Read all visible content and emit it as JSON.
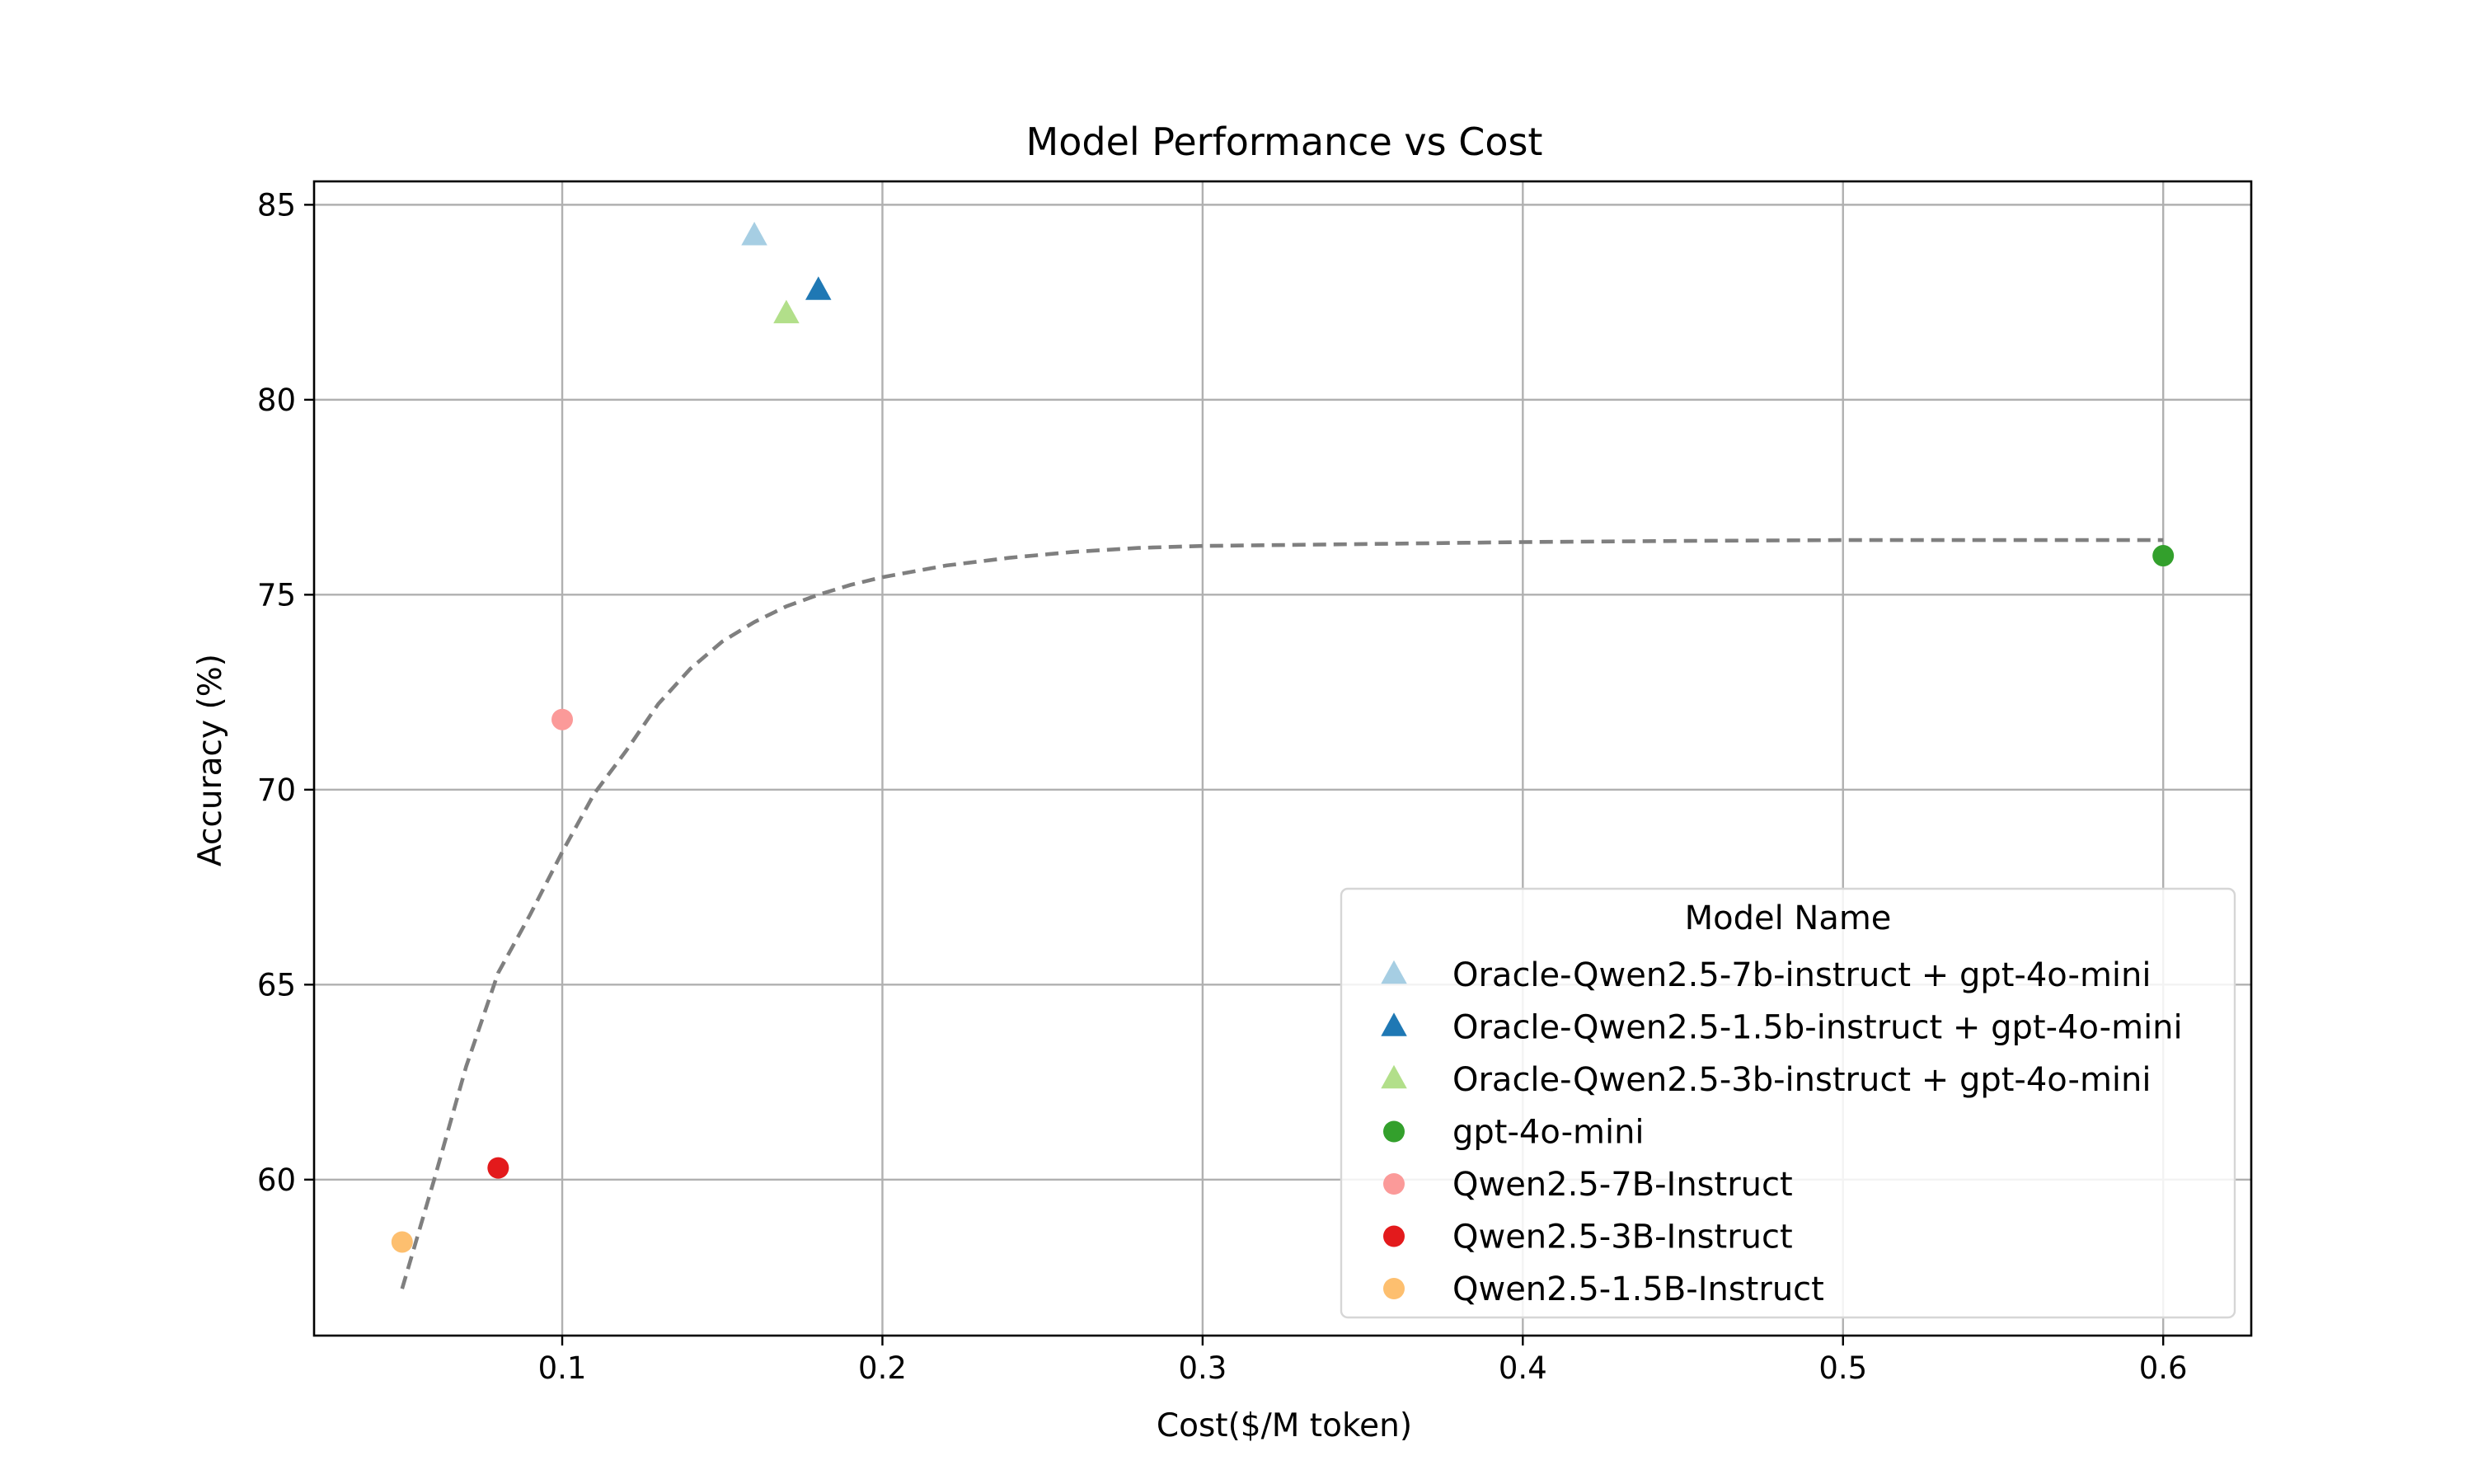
{
  "chart_data": {
    "type": "scatter",
    "title": "Model Performance vs Cost",
    "xlabel": "Cost($/M token)",
    "ylabel": "Accuracy (%)",
    "xlim": [
      0.0225,
      0.6275
    ],
    "ylim": [
      56.0,
      85.6
    ],
    "xticks": [
      0.1,
      0.2,
      0.3,
      0.4,
      0.5,
      0.6
    ],
    "xtick_labels": [
      "0.1",
      "0.2",
      "0.3",
      "0.4",
      "0.5",
      "0.6"
    ],
    "yticks": [
      60,
      65,
      70,
      75,
      80,
      85
    ],
    "ytick_labels": [
      "60",
      "65",
      "70",
      "75",
      "80",
      "85"
    ],
    "grid": true,
    "legend": {
      "title": "Model Name",
      "position": "lower-right"
    },
    "series": [
      {
        "name": "Oracle-Qwen2.5-7b-instruct + gpt-4o-mini",
        "marker": "triangle",
        "color": "#a6cee3",
        "x": [
          0.16
        ],
        "y": [
          84.2
        ]
      },
      {
        "name": "Oracle-Qwen2.5-1.5b-instruct + gpt-4o-mini",
        "marker": "triangle",
        "color": "#1f78b4",
        "x": [
          0.18
        ],
        "y": [
          82.8
        ]
      },
      {
        "name": "Oracle-Qwen2.5-3b-instruct + gpt-4o-mini",
        "marker": "triangle",
        "color": "#b2df8a",
        "x": [
          0.17
        ],
        "y": [
          82.2
        ]
      },
      {
        "name": "gpt-4o-mini",
        "marker": "circle",
        "color": "#33a02c",
        "x": [
          0.6
        ],
        "y": [
          76.0
        ]
      },
      {
        "name": "Qwen2.5-7B-Instruct",
        "marker": "circle",
        "color": "#fb9a99",
        "x": [
          0.1
        ],
        "y": [
          71.8
        ]
      },
      {
        "name": "Qwen2.5-3B-Instruct",
        "marker": "circle",
        "color": "#e31a1c",
        "x": [
          0.08
        ],
        "y": [
          60.3
        ]
      },
      {
        "name": "Qwen2.5-1.5B-Instruct",
        "marker": "circle",
        "color": "#fdbf6f",
        "x": [
          0.05
        ],
        "y": [
          58.4
        ]
      }
    ],
    "trend_line": {
      "style": "dashed",
      "color": "#7f7f7f",
      "x": [
        0.05,
        0.06,
        0.07,
        0.08,
        0.09,
        0.1,
        0.11,
        0.12,
        0.13,
        0.14,
        0.15,
        0.16,
        0.17,
        0.18,
        0.19,
        0.2,
        0.22,
        0.24,
        0.26,
        0.28,
        0.3,
        0.35,
        0.4,
        0.45,
        0.5,
        0.55,
        0.6
      ],
      "y": [
        57.2,
        60.0,
        62.9,
        65.3,
        66.8,
        68.4,
        69.9,
        71.0,
        72.2,
        73.1,
        73.8,
        74.3,
        74.7,
        75.0,
        75.25,
        75.45,
        75.75,
        75.95,
        76.1,
        76.2,
        76.25,
        76.3,
        76.35,
        76.38,
        76.4,
        76.4,
        76.4
      ]
    }
  }
}
